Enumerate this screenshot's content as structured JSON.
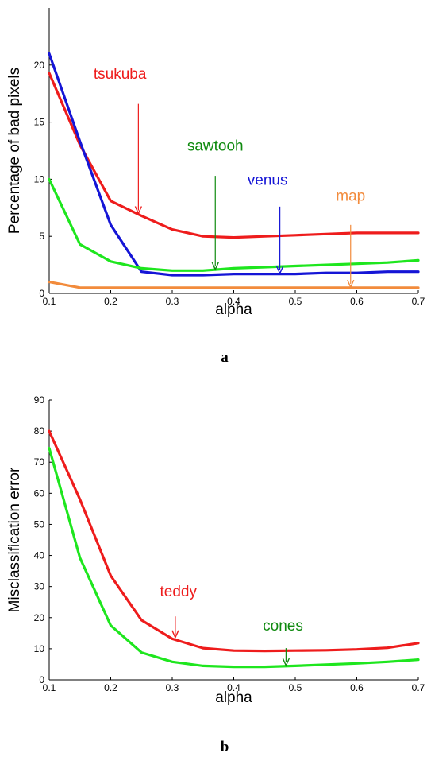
{
  "chart_data": [
    {
      "type": "line",
      "panel_label": "a",
      "xlabel": "alpha",
      "ylabel": "Percentage of bad pixels",
      "xlim": [
        0.1,
        0.7
      ],
      "ylim": [
        0,
        25
      ],
      "xticks": [
        "0.1",
        "0.2",
        "0.3",
        "0.4",
        "0.5",
        "0.6",
        "0.7"
      ],
      "yticks": [
        "0",
        "5",
        "10",
        "15",
        "20"
      ],
      "x": [
        0.1,
        0.15,
        0.2,
        0.25,
        0.3,
        0.35,
        0.4,
        0.45,
        0.5,
        0.55,
        0.6,
        0.65,
        0.7
      ],
      "series": [
        {
          "name": "tsukuba",
          "color": "#ee1c1c",
          "values": [
            19.3,
            13.0,
            8.1,
            6.8,
            5.6,
            5.0,
            4.9,
            5.0,
            5.1,
            5.2,
            5.3,
            5.3,
            5.3
          ]
        },
        {
          "name": "venus",
          "color": "#1515d6",
          "values": [
            21.0,
            13.3,
            6.0,
            1.9,
            1.6,
            1.6,
            1.7,
            1.7,
            1.7,
            1.8,
            1.8,
            1.9,
            1.9
          ]
        },
        {
          "name": "sawtooh",
          "color": "#1ee61e",
          "values": [
            10.0,
            4.3,
            2.8,
            2.2,
            2.0,
            2.0,
            2.2,
            2.3,
            2.4,
            2.5,
            2.6,
            2.7,
            2.9
          ]
        },
        {
          "name": "map",
          "color": "#f28b3c",
          "values": [
            1.0,
            0.5,
            0.5,
            0.5,
            0.5,
            0.5,
            0.5,
            0.5,
            0.5,
            0.5,
            0.5,
            0.5,
            0.5
          ]
        }
      ],
      "annotations": [
        {
          "text": "tsukuba",
          "color": "#ee1c1c",
          "text_x": 0.215,
          "text_y": 18.8,
          "arrow_from": [
            0.245,
            16.6
          ],
          "arrow_to": [
            0.245,
            7.0
          ]
        },
        {
          "text": "sawtooh",
          "color": "#0f8a0f",
          "text_x": 0.37,
          "text_y": 12.5,
          "arrow_from": [
            0.37,
            10.3
          ],
          "arrow_to": [
            0.37,
            2.1
          ]
        },
        {
          "text": "venus",
          "color": "#1515d6",
          "text_x": 0.455,
          "text_y": 9.5,
          "arrow_from": [
            0.475,
            7.6
          ],
          "arrow_to": [
            0.475,
            1.75
          ]
        },
        {
          "text": "map",
          "color": "#f28b3c",
          "text_x": 0.59,
          "text_y": 8.1,
          "arrow_from": [
            0.59,
            6.0
          ],
          "arrow_to": [
            0.59,
            0.55
          ]
        }
      ]
    },
    {
      "type": "line",
      "panel_label": "b",
      "xlabel": "alpha",
      "ylabel": "Misclassification error",
      "xlim": [
        0.1,
        0.7
      ],
      "ylim": [
        0,
        90
      ],
      "xticks": [
        "0.1",
        "0.2",
        "0.3",
        "0.4",
        "0.5",
        "0.6",
        "0.7"
      ],
      "yticks": [
        "0",
        "10",
        "20",
        "30",
        "40",
        "50",
        "60",
        "70",
        "80",
        "90"
      ],
      "x": [
        0.1,
        0.15,
        0.2,
        0.25,
        0.3,
        0.35,
        0.4,
        0.45,
        0.5,
        0.55,
        0.6,
        0.65,
        0.7
      ],
      "series": [
        {
          "name": "teddy",
          "color": "#ee1c1c",
          "values": [
            80.0,
            58.0,
            33.5,
            19.2,
            13.2,
            10.2,
            9.4,
            9.3,
            9.4,
            9.5,
            9.8,
            10.3,
            11.8
          ]
        },
        {
          "name": "cones",
          "color": "#1ee61e",
          "values": [
            74.5,
            39.2,
            17.5,
            8.8,
            5.8,
            4.5,
            4.2,
            4.2,
            4.5,
            4.9,
            5.3,
            5.8,
            6.5
          ]
        }
      ],
      "annotations": [
        {
          "text": "teddy",
          "color": "#ee1c1c",
          "text_x": 0.31,
          "text_y": 26.8,
          "arrow_from": [
            0.305,
            20.4
          ],
          "arrow_to": [
            0.305,
            13.6
          ]
        },
        {
          "text": "cones",
          "color": "#0f8a0f",
          "text_x": 0.48,
          "text_y": 15.8,
          "arrow_from": [
            0.485,
            10.2
          ],
          "arrow_to": [
            0.485,
            4.6
          ]
        }
      ]
    }
  ]
}
